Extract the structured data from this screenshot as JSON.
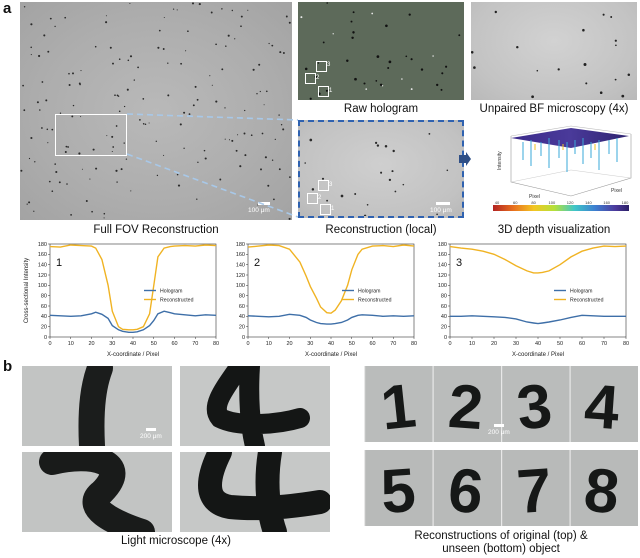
{
  "panel_a": {
    "letter": "a",
    "captions": {
      "full_fov": "Full FOV Reconstruction",
      "raw_hologram": "Raw hologram",
      "unpaired_bf": "Unpaired BF microscopy (4x)",
      "reconstruction_local": "Reconstruction (local)",
      "depth_3d": "3D depth visualization"
    },
    "scale_labels": {
      "full_fov": "100 μm",
      "local": "100 μm"
    },
    "box_labels": [
      "1",
      "2",
      "3"
    ],
    "depth_plot": {
      "z_label": "Intensity",
      "x_label": "Pixel",
      "y_label": "Pixel",
      "colorbar_ticks": [
        "40",
        "60",
        "80",
        "100",
        "120",
        "140",
        "160",
        "180"
      ]
    }
  },
  "panel_b": {
    "letter": "b",
    "captions": {
      "light_microscope": "Light microscope (4x)",
      "reconstructions_line1": "Reconstructions of original (top) &",
      "reconstructions_line2": "unseen (bottom) object"
    },
    "scale_labels": {
      "left": "200 μm",
      "right": "200 μm"
    },
    "digits_top": [
      "1",
      "2",
      "3",
      "4"
    ],
    "digits_bottom": [
      "5",
      "6",
      "7",
      "8"
    ]
  },
  "chart_data": [
    {
      "type": "line",
      "panel_label": "1",
      "xlabel": "X-coordinate / Pixel",
      "ylabel": "Cross-sectional Intensity",
      "xlim": [
        0,
        80
      ],
      "ylim": [
        0,
        180
      ],
      "xticks": [
        0,
        10,
        20,
        30,
        40,
        50,
        60,
        70,
        80
      ],
      "yticks": [
        0,
        20,
        40,
        60,
        80,
        100,
        120,
        140,
        160,
        180
      ],
      "legend": "right",
      "x": [
        0,
        5,
        10,
        15,
        20,
        22,
        25,
        28,
        30,
        33,
        35,
        38,
        40,
        42,
        45,
        48,
        50,
        52,
        55,
        58,
        60,
        65,
        70,
        75,
        80
      ],
      "series": [
        {
          "name": "Hologram",
          "color": "#3e6fa8",
          "values": [
            42,
            41,
            40,
            41,
            45,
            48,
            44,
            36,
            22,
            14,
            11,
            9,
            9,
            10,
            14,
            22,
            32,
            45,
            50,
            47,
            45,
            43,
            41,
            43,
            42
          ]
        },
        {
          "name": "Reconstructed",
          "color": "#f0b323",
          "values": [
            175,
            174,
            178,
            177,
            176,
            172,
            150,
            100,
            50,
            20,
            15,
            14,
            14,
            15,
            20,
            45,
            100,
            155,
            172,
            175,
            176,
            177,
            176,
            178,
            177
          ]
        }
      ]
    },
    {
      "type": "line",
      "panel_label": "2",
      "xlabel": "X-coordinate / Pixel",
      "ylabel": "",
      "xlim": [
        0,
        80
      ],
      "ylim": [
        0,
        180
      ],
      "xticks": [
        0,
        10,
        20,
        30,
        40,
        50,
        60,
        70,
        80
      ],
      "yticks": [
        0,
        20,
        40,
        60,
        80,
        100,
        120,
        140,
        160,
        180
      ],
      "legend": "right",
      "x": [
        0,
        5,
        10,
        15,
        20,
        25,
        28,
        30,
        33,
        35,
        38,
        40,
        42,
        45,
        48,
        50,
        53,
        55,
        60,
        65,
        70,
        75,
        80
      ],
      "series": [
        {
          "name": "Hologram",
          "color": "#3e6fa8",
          "values": [
            41,
            40,
            39,
            40,
            44,
            42,
            38,
            33,
            28,
            26,
            25,
            25,
            26,
            28,
            33,
            38,
            42,
            43,
            42,
            40,
            41,
            40,
            41
          ]
        },
        {
          "name": "Reconstructed",
          "color": "#f0b323",
          "values": [
            174,
            176,
            178,
            177,
            170,
            145,
            118,
            98,
            75,
            58,
            47,
            46,
            52,
            70,
            100,
            130,
            160,
            170,
            176,
            177,
            175,
            178,
            176
          ]
        }
      ]
    },
    {
      "type": "line",
      "panel_label": "3",
      "xlabel": "X-coordinate / Pixel",
      "ylabel": "",
      "xlim": [
        0,
        80
      ],
      "ylim": [
        0,
        180
      ],
      "xticks": [
        0,
        10,
        20,
        30,
        40,
        50,
        60,
        70,
        80
      ],
      "yticks": [
        0,
        20,
        40,
        60,
        80,
        100,
        120,
        140,
        160,
        180
      ],
      "legend": "right",
      "x": [
        0,
        5,
        10,
        15,
        20,
        25,
        30,
        35,
        38,
        40,
        42,
        45,
        50,
        55,
        60,
        65,
        70,
        75,
        80
      ],
      "series": [
        {
          "name": "Hologram",
          "color": "#3e6fa8",
          "values": [
            40,
            40,
            41,
            40,
            39,
            38,
            35,
            29,
            27,
            26,
            27,
            29,
            33,
            38,
            42,
            41,
            40,
            40,
            40
          ]
        },
        {
          "name": "Reconstructed",
          "color": "#f0b323",
          "values": [
            175,
            172,
            170,
            166,
            160,
            150,
            138,
            128,
            124,
            124,
            125,
            128,
            140,
            155,
            166,
            172,
            176,
            175,
            176
          ]
        }
      ]
    }
  ]
}
